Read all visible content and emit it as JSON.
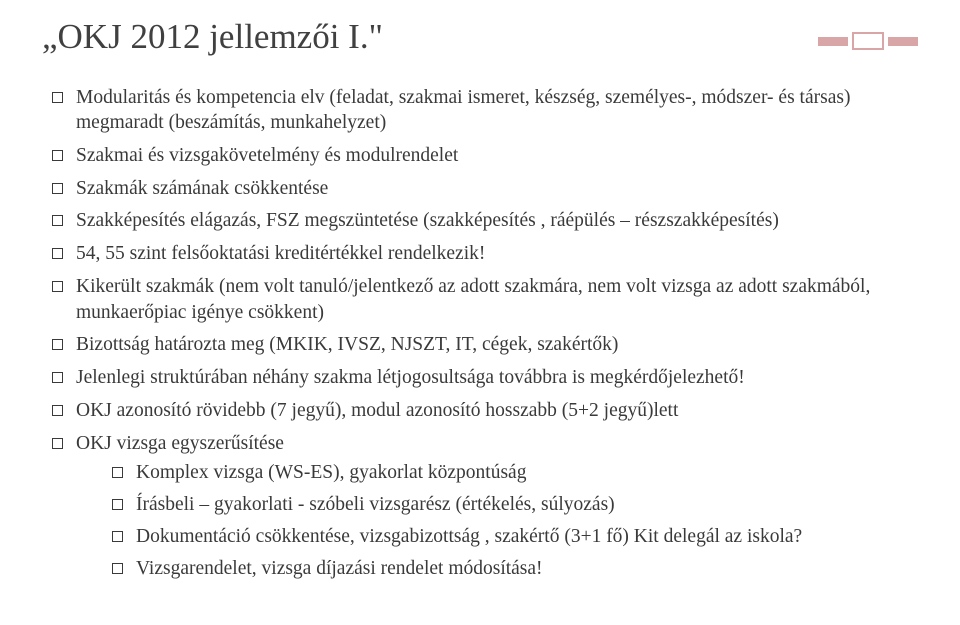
{
  "title": "„OKJ 2012 jellemzői I.\"",
  "colors": {
    "accent": "#d8a6a6",
    "text": "#3a3a3a",
    "background": "#ffffff"
  },
  "bullets": [
    "Modularitás és kompetencia elv  (feladat, szakmai ismeret, készség, személyes-, módszer- és társas) megmaradt (beszámítás, munkahelyzet)",
    "Szakmai és vizsgakövetelmény és modulrendelet",
    "Szakmák számának csökkentése",
    "Szakképesítés elágazás, FSZ megszüntetése (szakképesítés , ráépülés – részszakképesítés)",
    "54, 55 szint felsőoktatási kreditértékkel rendelkezik!",
    "Kikerült szakmák (nem volt tanuló/jelentkező az adott szakmára,  nem volt vizsga az adott szakmából, munkaerőpiac igénye csökkent)",
    "Bizottság határozta meg (MKIK, IVSZ, NJSZT, IT, cégek, szakértők)",
    "Jelenlegi struktúrában néhány szakma létjogosultsága továbbra is megkérdőjelezhető!",
    "OKJ azonosító rövidebb (7 jegyű), modul azonosító hosszabb (5+2 jegyű)lett",
    "OKJ vizsga egyszerűsítése"
  ],
  "sub_bullets": [
    "Komplex vizsga (WS-ES), gyakorlat központúság",
    "Írásbeli – gyakorlati - szóbeli vizsgarész (értékelés, súlyozás)",
    "Dokumentáció csökkentése,  vizsgabizottság , szakértő (3+1 fő) Kit delegál az iskola?",
    "Vizsgarendelet, vizsga díjazási rendelet módosítása!"
  ],
  "typography": {
    "title_fontsize": 35,
    "body_fontsize": 19.5,
    "font_family": "Garamond"
  }
}
